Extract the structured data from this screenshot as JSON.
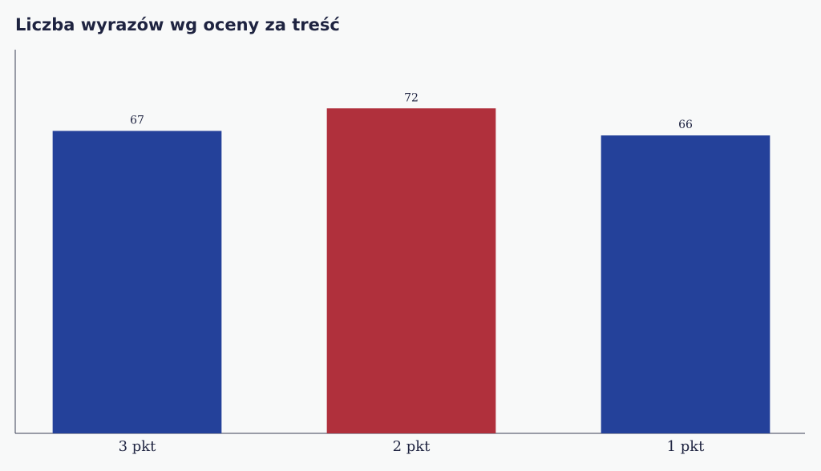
{
  "chart_data": {
    "type": "bar",
    "title": "Liczba wyrazów wg oceny za treść",
    "categories": [
      "3 pkt",
      "2 pkt",
      "1 pkt"
    ],
    "values": [
      67,
      72,
      66
    ],
    "colors": [
      "#24419a",
      "#b0303c",
      "#24419a"
    ],
    "ylim": [
      0,
      85
    ]
  }
}
